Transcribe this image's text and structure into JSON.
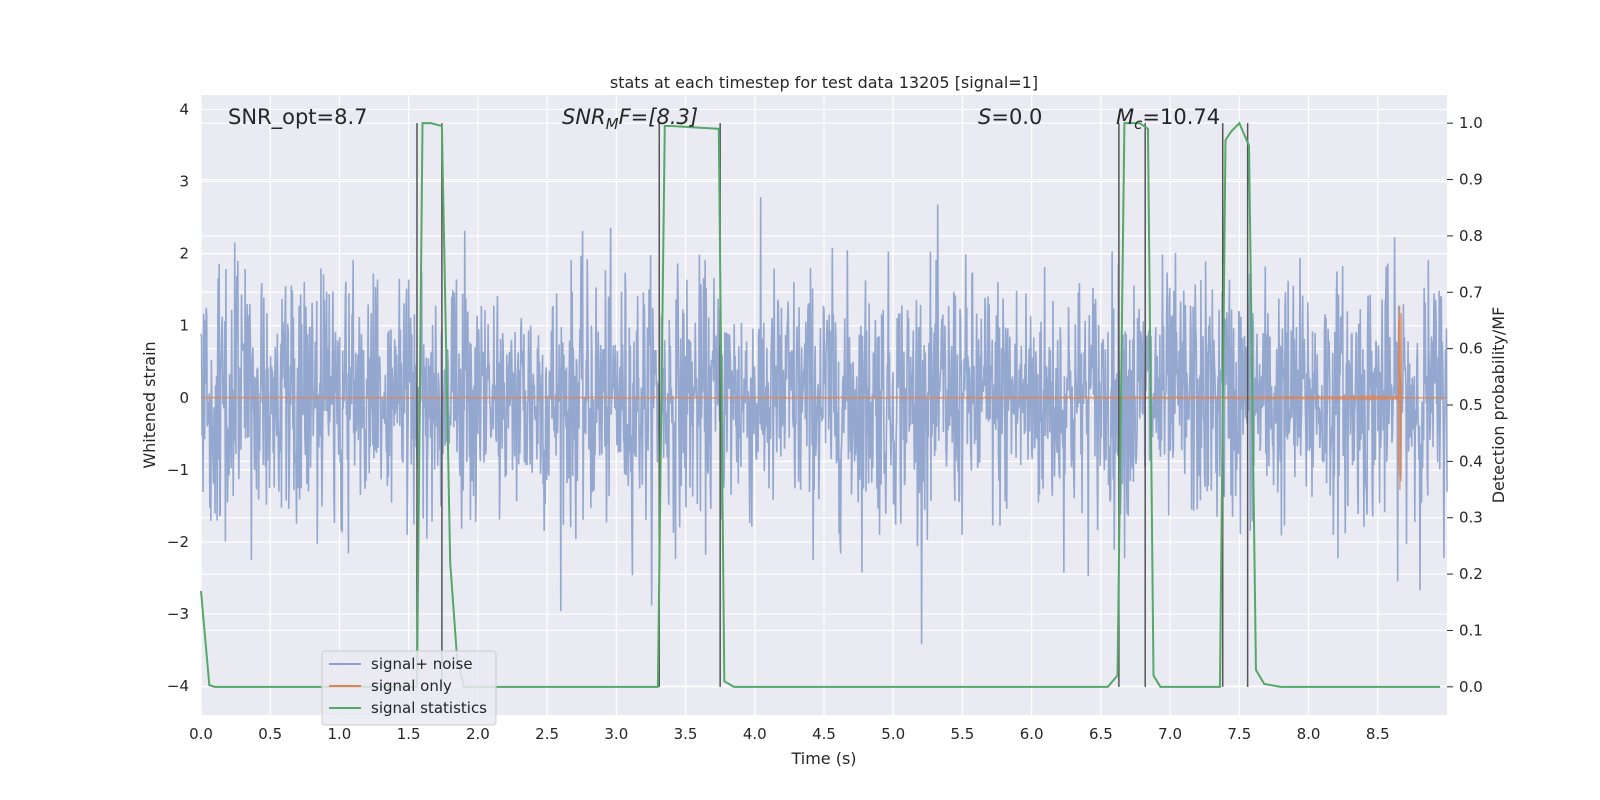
{
  "chart_data": {
    "type": "line",
    "title": "stats at each timestep for test data 13205 [signal=1]",
    "xlabel": "Time (s)",
    "ylabel_left": "Whitened strain",
    "ylabel_right": "Detection probability/MF",
    "xlim": [
      0,
      9.0
    ],
    "ylim_left": [
      -4.4,
      4.2
    ],
    "ylim_right": [
      -0.05,
      1.05
    ],
    "grid": true,
    "legend_placement": "lower-left",
    "x_ticks": [
      "0.0",
      "0.5",
      "1.0",
      "1.5",
      "2.0",
      "2.5",
      "3.0",
      "3.5",
      "4.0",
      "4.5",
      "5.0",
      "5.5",
      "6.0",
      "6.5",
      "7.0",
      "7.5",
      "8.0",
      "8.5"
    ],
    "x_tick_values": [
      0,
      0.5,
      1,
      1.5,
      2,
      2.5,
      3,
      3.5,
      4,
      4.5,
      5,
      5.5,
      6,
      6.5,
      7,
      7.5,
      8,
      8.5
    ],
    "y_ticks_left": [
      "−4",
      "−3",
      "−2",
      "−1",
      "0",
      "1",
      "2",
      "3",
      "4"
    ],
    "y_tick_values_left": [
      -4,
      -3,
      -2,
      -1,
      0,
      1,
      2,
      3,
      4
    ],
    "y_ticks_right": [
      "0.0",
      "0.1",
      "0.2",
      "0.3",
      "0.4",
      "0.5",
      "0.6",
      "0.7",
      "0.8",
      "0.9",
      "1.0"
    ],
    "y_tick_values_right": [
      0,
      0.1,
      0.2,
      0.3,
      0.4,
      0.5,
      0.6,
      0.7,
      0.8,
      0.9,
      1.0
    ],
    "annotations": {
      "snr_opt": "SNR_opt=8.7",
      "snr_mf_base": "SNR",
      "snr_mf_sub": "M",
      "snr_mf_rest": "F=[8.3]",
      "s_var": "S",
      "s_rest": "=0.0",
      "mc_var": "M",
      "mc_sub": "c",
      "mc_rest": "=10.74"
    },
    "colors": {
      "noise": "#8ba0cb",
      "signal": "#dd8452",
      "stats": "#55a868",
      "vlines": "#555555",
      "background": "#eaeaf2",
      "grid": "#ffffff"
    },
    "series": [
      {
        "name": "signal+ noise",
        "axis": "left",
        "description_type": "noise",
        "sigma": 0.85,
        "t_range": [
          0,
          9.0
        ]
      },
      {
        "name": "signal only",
        "axis": "left",
        "chirp_end_time": 8.67,
        "chirp_peak_amplitude": 1.45
      },
      {
        "name": "signal statistics",
        "axis": "right",
        "x": [
          0.0,
          0.06,
          0.1,
          1.56,
          1.6,
          1.66,
          1.74,
          1.8,
          1.85,
          1.9,
          3.3,
          3.35,
          3.4,
          3.74,
          3.78,
          3.85,
          6.55,
          6.62,
          6.67,
          6.78,
          6.84,
          6.88,
          6.93,
          7.36,
          7.4,
          7.44,
          7.5,
          7.57,
          7.62,
          7.68,
          7.8,
          8.95
        ],
        "y": [
          0.17,
          0.003,
          0.0,
          0.0,
          1.0,
          1.0,
          0.995,
          0.22,
          0.05,
          0.0,
          0.0,
          0.995,
          0.995,
          0.99,
          0.01,
          0.0,
          0.0,
          0.02,
          1.0,
          1.0,
          0.99,
          0.02,
          0.0,
          0.0,
          0.97,
          0.985,
          1.0,
          0.96,
          0.03,
          0.005,
          0.0,
          0.0
        ]
      }
    ],
    "vertical_lines": [
      {
        "x": 1.56,
        "y_top": 1.0
      },
      {
        "x": 1.74,
        "y_top": 1.0
      },
      {
        "x": 3.31,
        "y_top": 1.0
      },
      {
        "x": 3.75,
        "y_top": 1.0
      },
      {
        "x": 6.63,
        "y_top": 1.0
      },
      {
        "x": 6.82,
        "y_top": 1.0
      },
      {
        "x": 7.38,
        "y_top": 1.0
      },
      {
        "x": 7.56,
        "y_top": 1.0
      }
    ]
  }
}
